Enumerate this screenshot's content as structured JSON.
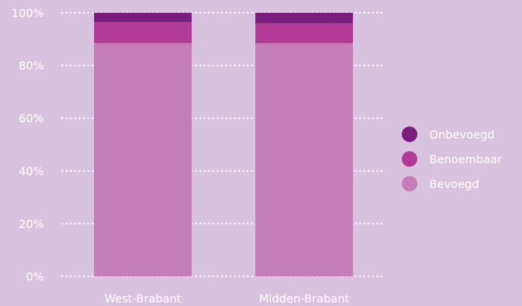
{
  "chart_data": {
    "type": "bar",
    "stacked": true,
    "categories": [
      "West-Brabant",
      "Midden-Brabant"
    ],
    "series": [
      {
        "name": "Bevoegd",
        "color": "#c47db7",
        "values": [
          88.5,
          88.5
        ]
      },
      {
        "name": "Benoembaar",
        "color": "#b03a96",
        "values": [
          8.0,
          7.5
        ]
      },
      {
        "name": "Onbevoegd",
        "color": "#7a1d7e",
        "values": [
          3.5,
          4.0
        ]
      }
    ],
    "ylim": [
      0,
      100
    ],
    "y_ticks": [
      {
        "value": 0,
        "label": "0%"
      },
      {
        "value": 20,
        "label": "20%"
      },
      {
        "value": 40,
        "label": "40%"
      },
      {
        "value": 60,
        "label": "60%"
      },
      {
        "value": 80,
        "label": "80%"
      },
      {
        "value": 100,
        "label": "100%"
      }
    ],
    "legend_order": [
      "Onbevoegd",
      "Benoembaar",
      "Bevoegd"
    ],
    "legend_position": "right",
    "grid": "horizontal-dotted",
    "title": "",
    "xlabel": "",
    "ylabel": ""
  },
  "colors": {
    "background": "#d9c2e0",
    "grid": "#ffffff",
    "text": "#ffffff"
  }
}
